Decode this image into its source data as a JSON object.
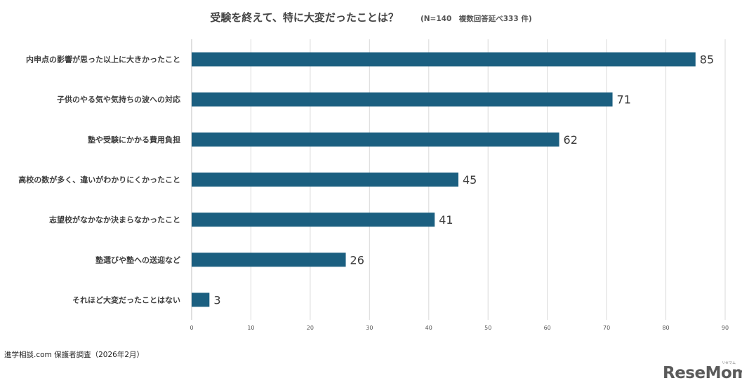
{
  "title": "受験を終えて、特に大変だったことは？",
  "subtitle": "(N=140　複数回答延べ333 件)",
  "source": "進学相談.com 保護者調査（2026年2月）",
  "logo": {
    "text": "ReseMom",
    "kana": "リセマム"
  },
  "colors": {
    "bar": "#1b5f80",
    "grid": "#d9d9d9",
    "text": "#3f3f3f"
  },
  "chart_data": {
    "type": "bar",
    "orientation": "horizontal",
    "title": "受験を終えて、特に大変だったことは？",
    "subtitle": "(N=140　複数回答延べ333 件)",
    "categories": [
      "内申点の影響が思った以上に大きかったこと",
      "子供のやる気や気持ちの波への対応",
      "塾や受験にかかる費用負担",
      "高校の数が多く、違いがわかりにくかったこと",
      "志望校がなかなか決まらなかったこと",
      "塾選びや塾への送迎など",
      "それほど大変だったことはない"
    ],
    "values": [
      85,
      71,
      62,
      45,
      41,
      26,
      3
    ],
    "xlim": [
      0,
      90
    ],
    "xticks": [
      0,
      10,
      20,
      30,
      40,
      50,
      60,
      70,
      80,
      90
    ],
    "xlabel": "",
    "ylabel": "",
    "grid": true,
    "data_labels": true
  }
}
